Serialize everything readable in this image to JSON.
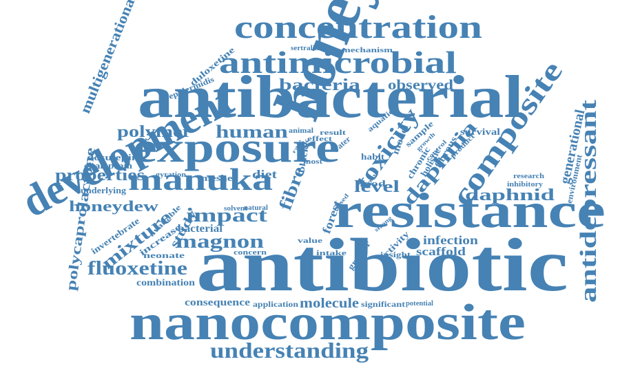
{
  "word_color": "#4682b4",
  "background": "#ffffff",
  "words": [
    {
      "text": "antibiotic"
    },
    {
      "text": "antibacterial"
    },
    {
      "text": "nanocomposite"
    },
    {
      "text": "resistance"
    },
    {
      "text": "honey"
    },
    {
      "text": "development"
    },
    {
      "text": "exposure"
    },
    {
      "text": "concentration"
    },
    {
      "text": "antimicrobial"
    },
    {
      "text": "manuka"
    },
    {
      "text": "composite"
    },
    {
      "text": "antidepressant"
    },
    {
      "text": "toxicity"
    },
    {
      "text": "daphnia"
    },
    {
      "text": "understanding"
    },
    {
      "text": "fluoxetine"
    },
    {
      "text": "magnon"
    },
    {
      "text": "impact"
    },
    {
      "text": "human"
    },
    {
      "text": "polymer"
    },
    {
      "text": "properties"
    },
    {
      "text": "bacteria"
    },
    {
      "text": "observed"
    },
    {
      "text": "honeydew"
    },
    {
      "text": "mixture"
    },
    {
      "text": "fibre"
    },
    {
      "text": "level"
    },
    {
      "text": "daphnid"
    },
    {
      "text": "generational"
    },
    {
      "text": "multigenerational"
    },
    {
      "text": "polycaprolactone"
    },
    {
      "text": "molecule"
    },
    {
      "text": "infection"
    },
    {
      "text": "scaffold"
    },
    {
      "text": "consequence"
    },
    {
      "text": "combination"
    },
    {
      "text": "application"
    },
    {
      "text": "significant"
    },
    {
      "text": "potential"
    },
    {
      "text": "study"
    },
    {
      "text": "bacterial"
    },
    {
      "text": "diet"
    },
    {
      "text": "meshes"
    },
    {
      "text": "epidermidis"
    },
    {
      "text": "duloxetine"
    },
    {
      "text": "sertraline"
    },
    {
      "text": "mechanism"
    },
    {
      "text": "dosulepin"
    },
    {
      "text": "citalopram"
    },
    {
      "text": "gyration"
    },
    {
      "text": "underlying"
    },
    {
      "text": "invertebrate"
    },
    {
      "text": "increase"
    },
    {
      "text": "available"
    },
    {
      "text": "neonate"
    },
    {
      "text": "concern"
    },
    {
      "text": "intake"
    },
    {
      "text": "insight"
    },
    {
      "text": "activity"
    },
    {
      "text": "greater"
    },
    {
      "text": "value"
    },
    {
      "text": "forest"
    },
    {
      "text": "survival"
    },
    {
      "text": "sample"
    },
    {
      "text": "model"
    },
    {
      "text": "chronic"
    },
    {
      "text": "fibrous"
    },
    {
      "text": "product"
    },
    {
      "text": "research"
    },
    {
      "text": "inhibitory"
    },
    {
      "text": "environment"
    },
    {
      "text": "food"
    },
    {
      "text": "black"
    },
    {
      "text": "habit"
    },
    {
      "text": "animal"
    },
    {
      "text": "result"
    },
    {
      "text": "effect"
    },
    {
      "text": "water"
    },
    {
      "text": "aquatic"
    },
    {
      "text": "rate"
    },
    {
      "text": "risk"
    },
    {
      "text": "most"
    },
    {
      "text": "growth"
    },
    {
      "text": "control"
    },
    {
      "text": "holistic"
    },
    {
      "text": "natural"
    },
    {
      "text": "solvent"
    },
    {
      "text": "strong"
    },
    {
      "text": "based"
    },
    {
      "text": "trend"
    }
  ]
}
